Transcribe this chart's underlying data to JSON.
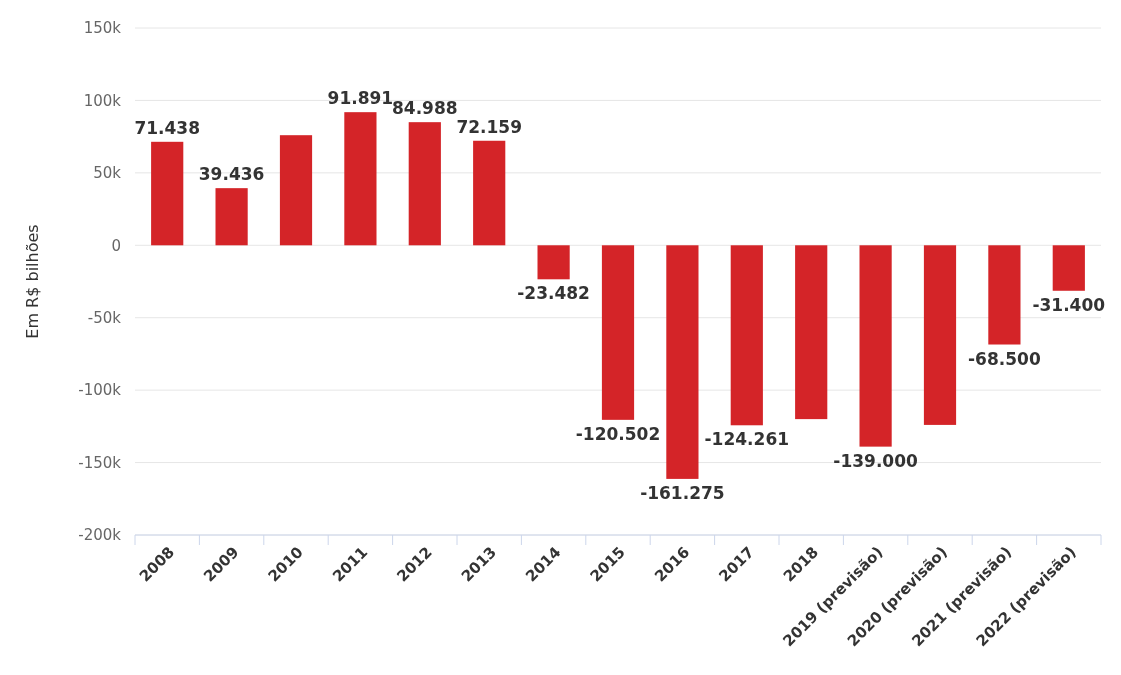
{
  "chart_data": {
    "type": "bar",
    "ylabel": "Em R$ bilhões",
    "categories": [
      "2008",
      "2009",
      "2010",
      "2011",
      "2012",
      "2013",
      "2014",
      "2015",
      "2016",
      "2017",
      "2018",
      "2019 (previsão)",
      "2020 (previsão)",
      "2021 (previsão)",
      "2022 (previsão)"
    ],
    "values": [
      71438,
      39436,
      76000,
      91891,
      84988,
      72159,
      -23482,
      -120502,
      -161275,
      -124261,
      -120000,
      -139000,
      -124000,
      -68500,
      -31400
    ],
    "value_labels": [
      "71.438",
      "39.436",
      null,
      "91.891",
      "84.988",
      "72.159",
      "-23.482",
      "-120.502",
      "-161.275",
      "-124.261",
      null,
      "-139.000",
      null,
      "-68.500",
      "-31.400"
    ],
    "color": "#d42428",
    "ylim": [
      -200000,
      150000
    ],
    "yticks": [
      {
        "value": -200000,
        "label": "-200k"
      },
      {
        "value": -150000,
        "label": "-150k"
      },
      {
        "value": -100000,
        "label": "-100k"
      },
      {
        "value": -50000,
        "label": "-50k"
      },
      0,
      {
        "value": 50000,
        "label": "50k"
      },
      {
        "value": 100000,
        "label": "100k"
      },
      {
        "value": 150000,
        "label": "150k"
      }
    ],
    "grid": "y"
  }
}
